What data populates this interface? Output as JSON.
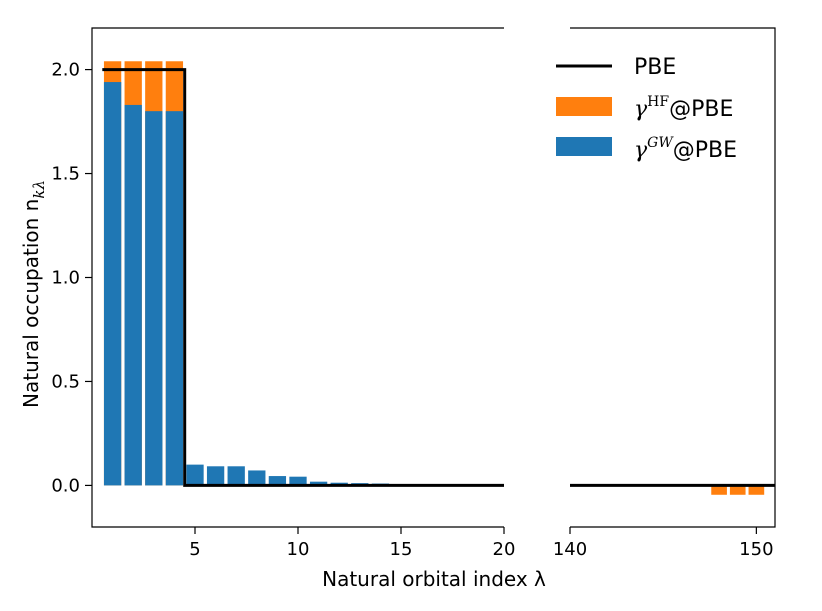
{
  "chart_data": {
    "type": "bar",
    "xlabel": "Natural orbital index λ",
    "ylabel": "Natural occupation n",
    "ylabel_subscript": "kλ",
    "ylim": [
      -0.2,
      2.2
    ],
    "yticks": [
      0.0,
      0.5,
      1.0,
      1.5,
      2.0
    ],
    "ytick_labels": [
      "0.0",
      "0.5",
      "1.0",
      "1.5",
      "2.0"
    ],
    "axes_break": true,
    "panels": [
      {
        "xlim": [
          0,
          20
        ],
        "xticks": [
          5,
          10,
          15,
          20
        ],
        "xtick_labels": [
          "5",
          "10",
          "15",
          "20"
        ]
      },
      {
        "xlim": [
          140,
          151
        ],
        "xticks": [
          140,
          150
        ],
        "xtick_labels": [
          "140",
          "150"
        ]
      }
    ],
    "series": [
      {
        "name": "PBE",
        "kind": "step",
        "color": "#000000",
        "points": [
          [
            0.5,
            2.0
          ],
          [
            4.5,
            2.0
          ],
          [
            4.5,
            0.0
          ],
          [
            20,
            0.0
          ],
          [
            140,
            0.0
          ],
          [
            151,
            0.0
          ]
        ]
      },
      {
        "name": "γ^HF@PBE",
        "name_base": "γ",
        "name_sup": "HF",
        "name_suffix": "@PBE",
        "kind": "bar",
        "color": "#ff7f0e",
        "x": [
          1,
          2,
          3,
          4,
          148,
          149,
          150
        ],
        "values": [
          2.04,
          2.04,
          2.04,
          2.04,
          -0.045,
          -0.045,
          -0.045
        ]
      },
      {
        "name": "γ^GW@PBE",
        "name_base": "γ",
        "name_sup": "GW",
        "name_suffix": "@PBE",
        "kind": "bar",
        "color": "#1f77b4",
        "x": [
          1,
          2,
          3,
          4,
          5,
          6,
          7,
          8,
          9,
          10,
          11,
          12,
          13,
          14
        ],
        "values": [
          1.94,
          1.83,
          1.8,
          1.8,
          0.1,
          0.092,
          0.092,
          0.072,
          0.045,
          0.042,
          0.018,
          0.013,
          0.011,
          0.009
        ]
      }
    ],
    "legend_position": "top-right"
  }
}
